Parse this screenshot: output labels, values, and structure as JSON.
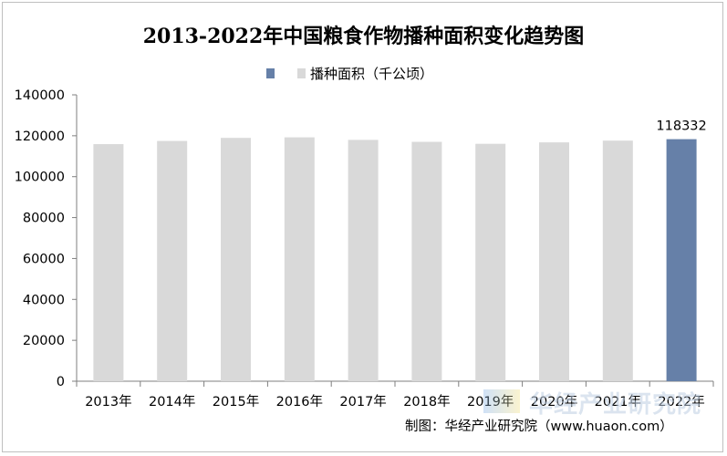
{
  "chart_data": {
    "type": "bar",
    "title": "2013-2022年中国粮食作物播种面积变化趋势图",
    "categories": [
      "2013年",
      "2014年",
      "2015年",
      "2016年",
      "2017年",
      "2018年",
      "2019年",
      "2020年",
      "2021年",
      "2022年"
    ],
    "series": [
      {
        "name": "播种面积（千公顷）",
        "values": [
          115908,
          117455,
          118963,
          119230,
          117989,
          117038,
          116064,
          116768,
          117631,
          118332
        ]
      }
    ],
    "data_labels": [
      null,
      null,
      null,
      null,
      null,
      null,
      null,
      null,
      null,
      "118332"
    ],
    "ylim": [
      0,
      140000
    ],
    "yticks": [
      "0",
      "20000",
      "40000",
      "60000",
      "80000",
      "100000",
      "120000",
      "140000"
    ],
    "highlight_index": 9,
    "legend_position": "top",
    "grid": false,
    "colors": {
      "bar": "#d9d9d9",
      "highlight": "#6680a8",
      "axis": "#7f7f7f"
    }
  },
  "legend": {
    "highlight_swatch": "#6680a8",
    "gray_swatch": "#d9d9d9",
    "label": "播种面积（千公顷）"
  },
  "credit": "制图：华经产业研究院（www.huaon.com）",
  "watermark": "华经产业研究院"
}
